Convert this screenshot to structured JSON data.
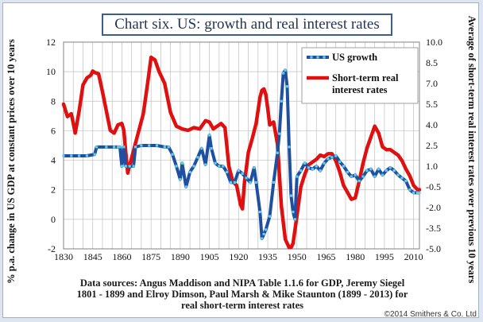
{
  "title": "Chart six. US: growth and real interest rates",
  "source_lines": [
    "Data sources: Angus Maddison and NIPA Table 1.1.6 for GDP, Jeremy Siegel",
    "1801 - 1899 and Elroy Dimson, Paul Marsh & Mike Staunton (1899 - 2013) for",
    "real short-term interest rates"
  ],
  "copyright": "©2014 Smithers & Co. Ltd",
  "colors": {
    "growth_line": "#1f4fa0",
    "growth_markers": "#5fd0e8",
    "rates_line": "#e01010",
    "grid": "#c0c0c0",
    "title_border": "#3a5f8f"
  },
  "chart_data": {
    "type": "line",
    "title": "Chart six. US: growth and real interest rates",
    "xlabel": "",
    "ylabel": "% p.a. change in US GDP at constant prices over 10 years",
    "y2label": "Average of short-term real interest rates over previous 10 years",
    "xlim": [
      1830,
      2013
    ],
    "ylim": [
      -2,
      12
    ],
    "y2lim": [
      -5,
      10
    ],
    "x_ticks": [
      1830,
      1845,
      1860,
      1875,
      1890,
      1905,
      1920,
      1935,
      1950,
      1965,
      1980,
      1995,
      2010
    ],
    "y_ticks": [
      -2,
      0,
      2,
      4,
      6,
      8,
      10,
      12
    ],
    "y2_ticks": [
      -5.0,
      -3.5,
      -2.0,
      -0.5,
      1.0,
      2.5,
      4.0,
      5.5,
      7.0,
      8.5,
      10.0
    ],
    "y2_tick_labels": [
      "-5.0",
      "-3.5",
      "-2.0",
      "-0.5",
      "1.0",
      "2.5",
      "4.0",
      "5.5",
      "7.0",
      "8.5",
      "10.0"
    ],
    "grid": true,
    "legend_position": "top-right",
    "series": [
      {
        "name": "US growth",
        "axis": "left",
        "x": [
          1830,
          1834,
          1838,
          1842,
          1846,
          1847,
          1852,
          1856,
          1858,
          1859,
          1860,
          1861,
          1862,
          1864,
          1866,
          1867,
          1870,
          1874,
          1878,
          1882,
          1884,
          1886,
          1888,
          1890,
          1891,
          1893,
          1895,
          1897,
          1899,
          1901,
          1903,
          1905,
          1906,
          1908,
          1910,
          1912,
          1914,
          1916,
          1918,
          1920,
          1922,
          1924,
          1926,
          1928,
          1929,
          1931,
          1932,
          1933,
          1934,
          1936,
          1938,
          1940,
          1941,
          1942,
          1943,
          1944,
          1945,
          1946,
          1947,
          1948,
          1949,
          1950,
          1952,
          1954,
          1956,
          1958,
          1960,
          1962,
          1964,
          1966,
          1968,
          1970,
          1972,
          1974,
          1976,
          1978,
          1980,
          1982,
          1984,
          1986,
          1988,
          1990,
          1992,
          1994,
          1996,
          1998,
          2000,
          2002,
          2004,
          2006,
          2008,
          2010,
          2012,
          2013
        ],
        "values": [
          4.3,
          4.3,
          4.3,
          4.3,
          4.4,
          4.9,
          4.9,
          4.9,
          4.9,
          4.9,
          3.6,
          4.9,
          3.6,
          3.6,
          3.6,
          4.9,
          5.0,
          5.0,
          5.0,
          4.9,
          4.9,
          4.4,
          3.6,
          2.7,
          3.8,
          2.2,
          3.2,
          3.6,
          4.2,
          4.8,
          3.7,
          5.7,
          4.8,
          3.8,
          3.6,
          3.6,
          3.2,
          2.5,
          2.5,
          3.3,
          3.1,
          2.8,
          2.5,
          3.5,
          2.5,
          0.5,
          -1.3,
          -1.0,
          -0.7,
          0.2,
          2.5,
          4.5,
          5.8,
          8.0,
          9.9,
          10.1,
          9.0,
          4.9,
          1.6,
          0.5,
          0.0,
          2.9,
          3.3,
          3.8,
          3.5,
          3.4,
          3.6,
          3.3,
          3.8,
          4.1,
          4.2,
          4.3,
          3.9,
          3.6,
          3.2,
          2.9,
          3.0,
          2.6,
          2.9,
          3.3,
          3.4,
          2.9,
          3.4,
          3.0,
          3.3,
          3.5,
          3.3,
          3.0,
          2.8,
          2.6,
          2.0,
          1.8,
          1.8,
          1.8
        ]
      },
      {
        "name": "Short-term real interest rates",
        "axis": "right",
        "x": [
          1830,
          1832,
          1834,
          1836,
          1838,
          1840,
          1842,
          1844,
          1845,
          1846,
          1848,
          1850,
          1852,
          1854,
          1856,
          1858,
          1860,
          1861,
          1862,
          1863,
          1865,
          1868,
          1871,
          1873,
          1875,
          1877,
          1879,
          1882,
          1885,
          1888,
          1891,
          1894,
          1897,
          1900,
          1903,
          1905,
          1907,
          1909,
          1911,
          1913,
          1915,
          1917,
          1919,
          1921,
          1922,
          1923,
          1925,
          1927,
          1929,
          1931,
          1932,
          1933,
          1934,
          1935,
          1936,
          1938,
          1940,
          1942,
          1944,
          1946,
          1947,
          1948,
          1950,
          1952,
          1954,
          1956,
          1958,
          1960,
          1962,
          1964,
          1966,
          1968,
          1970,
          1972,
          1974,
          1976,
          1978,
          1980,
          1982,
          1984,
          1986,
          1988,
          1990,
          1992,
          1994,
          1996,
          1998,
          2000,
          2002,
          2004,
          2006,
          2008,
          2010,
          2012,
          2013
        ],
        "values": [
          5.5,
          4.6,
          4.8,
          3.4,
          5.0,
          6.9,
          7.4,
          7.6,
          7.9,
          7.8,
          7.7,
          6.4,
          5.0,
          3.6,
          3.4,
          4.0,
          4.1,
          3.6,
          2.0,
          0.5,
          1.6,
          3.2,
          4.8,
          6.8,
          8.9,
          8.7,
          7.9,
          7.0,
          4.9,
          3.9,
          3.7,
          3.6,
          3.8,
          3.7,
          4.3,
          4.2,
          3.7,
          3.9,
          4.1,
          3.8,
          1.0,
          -0.1,
          -0.4,
          -1.8,
          -2.1,
          -0.2,
          2.0,
          3.0,
          4.1,
          6.0,
          6.5,
          6.6,
          6.2,
          5.2,
          4.0,
          4.2,
          2.6,
          -1.9,
          -4.3,
          -4.9,
          -4.9,
          -4.6,
          -2.6,
          -0.5,
          0.4,
          1.1,
          1.3,
          1.5,
          1.8,
          1.7,
          1.9,
          1.9,
          1.4,
          0.6,
          -0.4,
          -0.9,
          -1.4,
          -1.3,
          -0.1,
          1.2,
          2.3,
          3.1,
          3.9,
          3.4,
          2.4,
          2.2,
          2.2,
          2.0,
          1.8,
          1.4,
          0.8,
          0.3,
          -0.4,
          -0.7,
          -0.7
        ]
      }
    ]
  }
}
